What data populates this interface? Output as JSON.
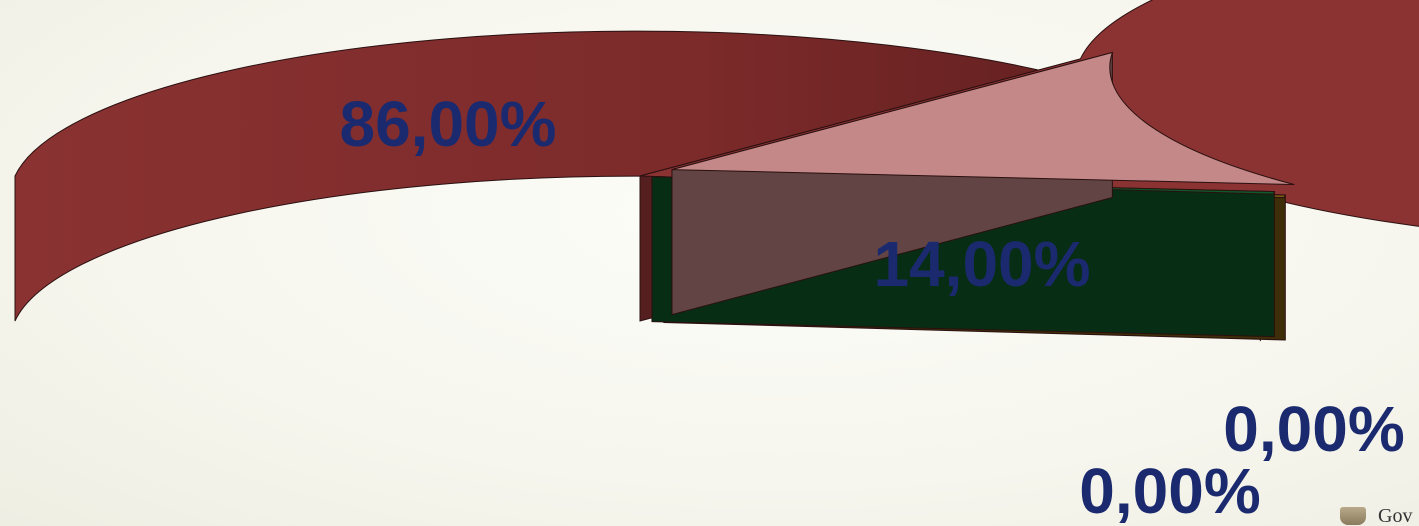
{
  "chart_data": {
    "type": "pie",
    "slices": [
      {
        "label": "86,00%",
        "value": 86.0,
        "color": "#8b3232"
      },
      {
        "label": "14,00%",
        "value": 14.0,
        "color": "#c48888"
      },
      {
        "label": "0,00%",
        "value": 0.0,
        "color": "#0d5a2a"
      },
      {
        "label": "0,00%",
        "value": 0.0,
        "color": "#7a5a10"
      }
    ],
    "legend": "none",
    "style": "3d-exploded"
  },
  "footer": {
    "text": "Gov"
  }
}
